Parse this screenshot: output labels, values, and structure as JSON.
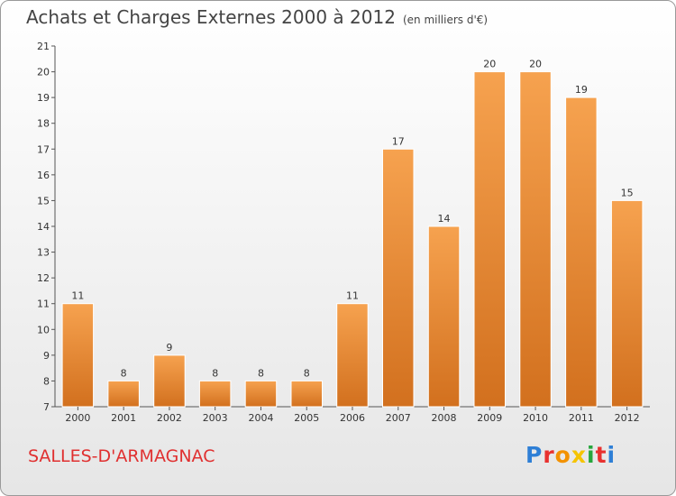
{
  "title": "Achats et Charges Externes 2000 à 2012",
  "subtitle": "(en milliers d'€)",
  "commune": "SALLES-D'ARMAGNAC",
  "logo": {
    "letters": [
      "P",
      "r",
      "o",
      "x",
      "i",
      "t",
      "i"
    ],
    "colors": [
      "#2e7fd6",
      "#e8312f",
      "#f39200",
      "#f5c400",
      "#26a63c",
      "#e8312f",
      "#2e7fd6"
    ]
  },
  "colors": {
    "bar_top": "#f6a24f",
    "bar_bottom": "#d2701e"
  },
  "chart_data": {
    "type": "bar",
    "categories": [
      "2000",
      "2001",
      "2002",
      "2003",
      "2004",
      "2005",
      "2006",
      "2007",
      "2008",
      "2009",
      "2010",
      "2011",
      "2012"
    ],
    "values": [
      11,
      8,
      9,
      8,
      8,
      8,
      11,
      17,
      14,
      20,
      20,
      19,
      15
    ],
    "title": "Achats et Charges Externes 2000 à 2012",
    "ylim": [
      7,
      21
    ],
    "yticks": [
      7,
      8,
      9,
      10,
      11,
      12,
      13,
      14,
      15,
      16,
      17,
      18,
      19,
      20,
      21
    ],
    "grid": false,
    "legend": "none"
  }
}
